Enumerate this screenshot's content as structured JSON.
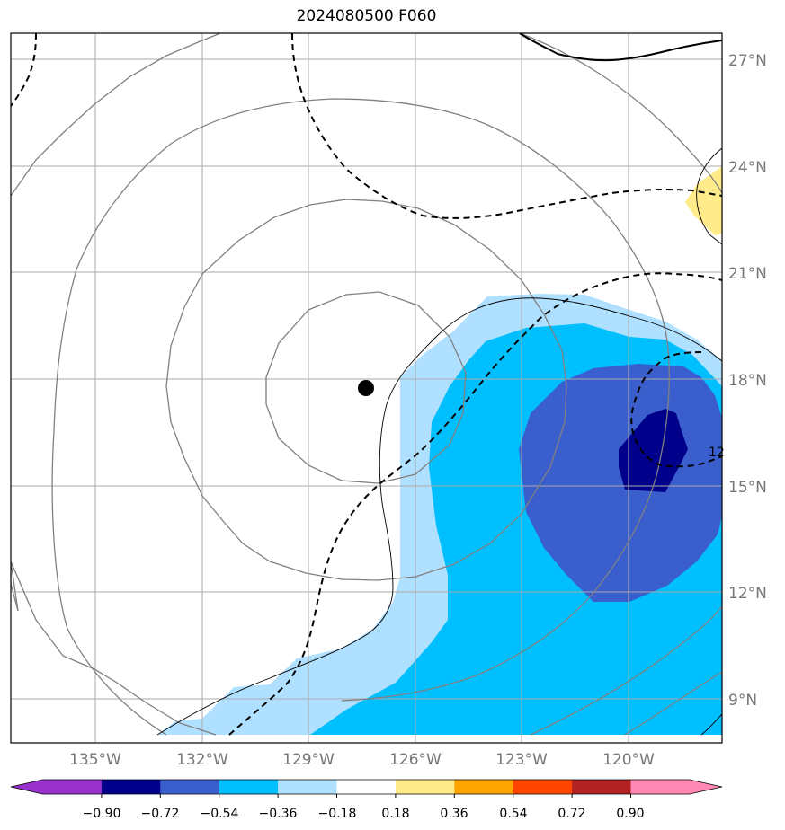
{
  "title": "2024080500 F060",
  "map": {
    "lon_labels": [
      "135°W",
      "132°W",
      "129°W",
      "126°W",
      "123°W",
      "120°W"
    ],
    "lat_labels": [
      "27°N",
      "24°N",
      "21°N",
      "18°N",
      "15°N",
      "12°N",
      "9°N"
    ],
    "gridline_color": "#aaaaaa",
    "isobar_color": "#808080",
    "contour_color": "#000000",
    "storm_center_marker": "filled-black-circle",
    "partial_contour_label": "12"
  },
  "colorbar": {
    "colors": [
      "#9932cc",
      "#00008b",
      "#3a5fcd",
      "#00bfff",
      "#b0e0ff",
      "#ffffff",
      "#ffeb8a",
      "#ffa500",
      "#ff4500",
      "#b22222",
      "#ff88b4",
      "#ff88b4"
    ],
    "tick_labels": [
      "−0.90",
      "−0.72",
      "−0.54",
      "−0.36",
      "−0.18",
      "0.18",
      "0.36",
      "0.54",
      "0.72",
      "0.90"
    ]
  }
}
